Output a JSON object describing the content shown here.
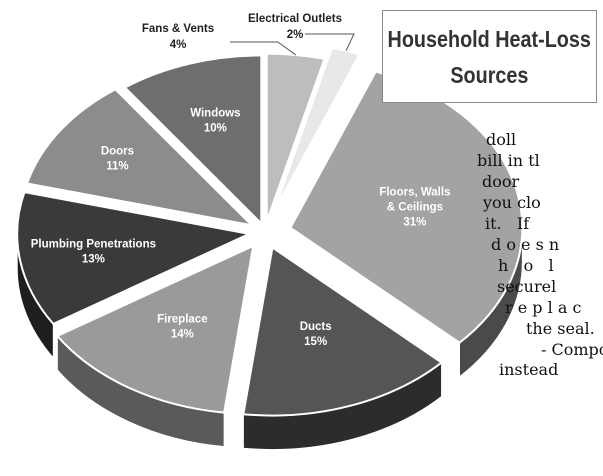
{
  "chart_data": {
    "type": "pie",
    "title_lines": [
      "Household Heat-Loss",
      "Sources"
    ],
    "slices": [
      {
        "label_lines": [
          "Fans & Vents"
        ],
        "value": 4,
        "value_label": "4%",
        "color": "#bdbdbd",
        "side": "#8a8a8a"
      },
      {
        "label_lines": [
          "Electrical Outlets"
        ],
        "value": 2,
        "value_label": "2%",
        "color": "#e8e8e8",
        "side": "#aaaaaa"
      },
      {
        "label_lines": [
          "Floors, Walls",
          "& Ceilings"
        ],
        "value": 31,
        "value_label": "31%",
        "color": "#a3a3a3",
        "side": "#4a4a4a"
      },
      {
        "label_lines": [
          "Ducts"
        ],
        "value": 15,
        "value_label": "15%",
        "color": "#555555",
        "side": "#2c2c2c"
      },
      {
        "label_lines": [
          "Fireplace"
        ],
        "value": 14,
        "value_label": "14%",
        "color": "#9a9a9a",
        "side": "#5a5a5a"
      },
      {
        "label_lines": [
          "Plumbing Penetrations"
        ],
        "value": 13,
        "value_label": "13%",
        "color": "#3a3a3a",
        "side": "#1e1e1e"
      },
      {
        "label_lines": [
          "Doors"
        ],
        "value": 11,
        "value_label": "11%",
        "color": "#8c8c8c",
        "side": "#4e4e4e"
      },
      {
        "label_lines": [
          "Windows"
        ],
        "value": 10,
        "value_label": "10%",
        "color": "#6e6e6e",
        "side": "#3c3c3c"
      }
    ]
  },
  "body_text": [
    "doll",
    "bill in tl",
    "door",
    "you clo",
    "it.   If",
    "d o e s n",
    "h   o   l",
    "securel",
    "r e p l a c",
    "the seal.",
    "- Compo",
    "instead"
  ]
}
